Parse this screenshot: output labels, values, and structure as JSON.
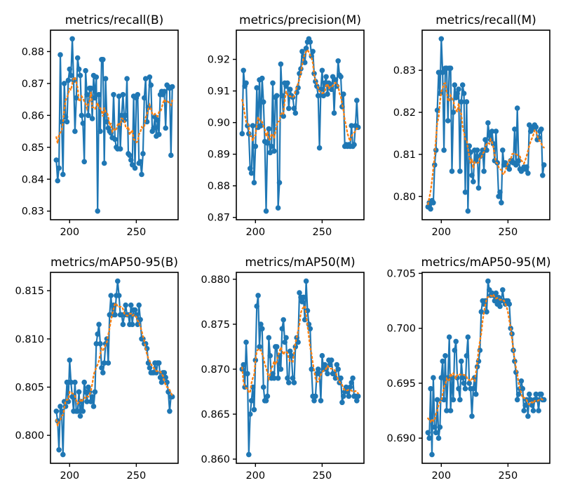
{
  "figure": {
    "background": "#ffffff",
    "line_color": "#1f77b4",
    "smooth_color": "#ff7f0e",
    "spine_color": "#000000",
    "smooth_window": 9,
    "smooth_legend_meaning": "smoothed trend (dotted)"
  },
  "chart_data": [
    {
      "type": "line",
      "title": "metrics/recall(B)",
      "xlabel": "",
      "ylabel": "",
      "grid": false,
      "legend": "none",
      "x_range": [
        190,
        277
      ],
      "xticks": [
        200,
        250
      ],
      "xtick_labels": [
        "200",
        "250"
      ],
      "yticks": [
        0.83,
        0.84,
        0.85,
        0.86,
        0.87,
        0.88
      ],
      "ytick_labels": [
        "0.83",
        "0.84",
        "0.85",
        "0.86",
        "0.87",
        "0.88"
      ],
      "series": [
        {
          "name": "results",
          "values": [
            0.846,
            0.8395,
            0.8435,
            0.879,
            0.858,
            0.8415,
            0.87,
            0.8595,
            0.858,
            0.871,
            0.8745,
            0.8725,
            0.884,
            0.871,
            0.855,
            0.8655,
            0.878,
            0.8745,
            0.8725,
            0.86,
            0.8575,
            0.8455,
            0.874,
            0.8665,
            0.86,
            0.8685,
            0.8685,
            0.859,
            0.8725,
            0.8655,
            0.872,
            0.83,
            0.8665,
            0.855,
            0.8775,
            0.8775,
            0.845,
            0.8715,
            0.858,
            0.856,
            0.855,
            0.8545,
            0.853,
            0.8665,
            0.8525,
            0.85,
            0.8495,
            0.866,
            0.8495,
            0.86,
            0.8665,
            0.8585,
            0.86,
            0.8715,
            0.848,
            0.8475,
            0.846,
            0.8445,
            0.866,
            0.8435,
            0.8655,
            0.8665,
            0.845,
            0.8455,
            0.8415,
            0.848,
            0.8655,
            0.8715,
            0.858,
            0.8625,
            0.872,
            0.8695,
            0.855,
            0.856,
            0.8595,
            0.8535,
            0.8585,
            0.854,
            0.8665,
            0.8675,
            0.8665,
            0.8675,
            0.856,
            0.8695,
            0.869,
            0.8685,
            0.8475,
            0.869
          ]
        },
        {
          "name": "smooth",
          "derived": "moving-average"
        }
      ]
    },
    {
      "type": "line",
      "title": "metrics/precision(M)",
      "xlabel": "",
      "ylabel": "",
      "grid": false,
      "legend": "none",
      "x_range": [
        190,
        277
      ],
      "xticks": [
        200,
        250
      ],
      "xtick_labels": [
        "200",
        "250"
      ],
      "yticks": [
        0.87,
        0.88,
        0.89,
        0.9,
        0.91,
        0.92
      ],
      "ytick_labels": [
        "0.87",
        "0.88",
        "0.89",
        "0.90",
        "0.91",
        "0.92"
      ],
      "series": [
        {
          "name": "results",
          "values": [
            0.8965,
            0.9165,
            0.9115,
            0.9125,
            0.899,
            0.8965,
            0.8855,
            0.884,
            0.899,
            0.881,
            0.8925,
            0.911,
            0.8985,
            0.9135,
            0.899,
            0.914,
            0.9065,
            0.894,
            0.872,
            0.8935,
            0.898,
            0.8905,
            0.8925,
            0.9125,
            0.891,
            0.908,
            0.9085,
            0.873,
            0.881,
            0.9185,
            0.9085,
            0.902,
            0.9125,
            0.9115,
            0.9125,
            0.9045,
            0.9105,
            0.9085,
            0.908,
            0.9045,
            0.903,
            0.9095,
            0.911,
            0.9155,
            0.917,
            0.9225,
            0.921,
            0.919,
            0.9235,
            0.9255,
            0.9265,
            0.9255,
            0.921,
            0.9225,
            0.9155,
            0.913,
            0.9115,
            0.9085,
            0.892,
            0.9105,
            0.9165,
            0.9085,
            0.9125,
            0.9145,
            0.909,
            0.9125,
            0.9115,
            0.9105,
            0.9145,
            0.903,
            0.9135,
            0.9115,
            0.9195,
            0.915,
            0.9145,
            0.905,
            0.909,
            0.8925,
            0.893,
            0.8925,
            0.893,
            0.8925,
            0.899,
            0.8925,
            0.893,
            0.899,
            0.907,
            0.8985
          ]
        },
        {
          "name": "smooth",
          "derived": "moving-average"
        }
      ]
    },
    {
      "type": "line",
      "title": "metrics/recall(M)",
      "xlabel": "",
      "ylabel": "",
      "grid": false,
      "legend": "none",
      "x_range": [
        190,
        277
      ],
      "xticks": [
        200,
        250
      ],
      "xtick_labels": [
        "200",
        "250"
      ],
      "yticks": [
        0.8,
        0.81,
        0.82,
        0.83
      ],
      "ytick_labels": [
        "0.80",
        "0.81",
        "0.82",
        "0.83"
      ],
      "series": [
        {
          "name": "results",
          "values": [
            0.7975,
            0.7985,
            0.797,
            0.799,
            0.7985,
            0.8075,
            0.811,
            0.8205,
            0.8295,
            0.8245,
            0.8375,
            0.8295,
            0.811,
            0.8305,
            0.8305,
            0.818,
            0.8305,
            0.8305,
            0.806,
            0.82,
            0.8265,
            0.8235,
            0.8245,
            0.8255,
            0.806,
            0.8225,
            0.8265,
            0.8245,
            0.801,
            0.8225,
            0.7965,
            0.812,
            0.8105,
            0.805,
            0.8035,
            0.811,
            0.8085,
            0.811,
            0.802,
            0.8095,
            0.81,
            0.811,
            0.806,
            0.8135,
            0.811,
            0.8175,
            0.8145,
            0.8135,
            0.8155,
            0.8125,
            0.8085,
            0.8155,
            0.808,
            0.8,
            0.801,
            0.7985,
            0.811,
            0.8075,
            0.808,
            0.8075,
            0.807,
            0.8065,
            0.8085,
            0.8085,
            0.808,
            0.816,
            0.8075,
            0.821,
            0.8085,
            0.8065,
            0.806,
            0.8065,
            0.807,
            0.8065,
            0.807,
            0.8055,
            0.817,
            0.8155,
            0.816,
            0.8165,
            0.817,
            0.8165,
            0.8135,
            0.814,
            0.8155,
            0.816,
            0.805,
            0.8075
          ]
        },
        {
          "name": "smooth",
          "derived": "moving-average"
        }
      ]
    },
    {
      "type": "line",
      "title": "metrics/mAP50-95(B)",
      "xlabel": "",
      "ylabel": "",
      "grid": false,
      "legend": "none",
      "x_range": [
        190,
        277
      ],
      "xticks": [
        200,
        250
      ],
      "xtick_labels": [
        "200",
        "250"
      ],
      "yticks": [
        0.8,
        0.805,
        0.81,
        0.815
      ],
      "ytick_labels": [
        "0.800",
        "0.805",
        "0.810",
        "0.815"
      ],
      "series": [
        {
          "name": "results",
          "values": [
            0.8025,
            0.8015,
            0.7985,
            0.803,
            0.8025,
            0.798,
            0.8035,
            0.803,
            0.8055,
            0.8035,
            0.8078,
            0.8055,
            0.804,
            0.8025,
            0.8055,
            0.8025,
            0.8025,
            0.8045,
            0.802,
            0.8035,
            0.8025,
            0.8055,
            0.8045,
            0.8035,
            0.805,
            0.8045,
            0.8035,
            0.804,
            0.803,
            0.8045,
            0.8095,
            0.8105,
            0.8115,
            0.8095,
            0.807,
            0.8065,
            0.8075,
            0.8095,
            0.81,
            0.8075,
            0.8125,
            0.8145,
            0.8125,
            0.8135,
            0.8125,
            0.8145,
            0.816,
            0.8145,
            0.8125,
            0.8125,
            0.8115,
            0.8125,
            0.8135,
            0.8125,
            0.8125,
            0.8115,
            0.8135,
            0.8115,
            0.813,
            0.813,
            0.8125,
            0.8115,
            0.8135,
            0.812,
            0.81,
            0.81,
            0.8095,
            0.8095,
            0.809,
            0.8075,
            0.807,
            0.8065,
            0.8065,
            0.8065,
            0.8075,
            0.8065,
            0.8075,
            0.8075,
            0.806,
            0.8055,
            0.8065,
            0.8065,
            0.806,
            0.8055,
            0.8045,
            0.8025,
            0.804,
            0.804
          ]
        },
        {
          "name": "smooth",
          "derived": "moving-average"
        }
      ]
    },
    {
      "type": "line",
      "title": "metrics/mAP50(M)",
      "xlabel": "",
      "ylabel": "",
      "grid": false,
      "legend": "none",
      "x_range": [
        190,
        277
      ],
      "xticks": [
        200,
        250
      ],
      "xtick_labels": [
        "200",
        "250"
      ],
      "yticks": [
        0.86,
        0.865,
        0.87,
        0.875,
        0.88
      ],
      "ytick_labels": [
        "0.860",
        "0.865",
        "0.870",
        "0.875",
        "0.880"
      ],
      "series": [
        {
          "name": "results",
          "values": [
            0.87,
            0.8705,
            0.868,
            0.873,
            0.8695,
            0.8605,
            0.865,
            0.8665,
            0.868,
            0.8655,
            0.871,
            0.877,
            0.8782,
            0.8725,
            0.875,
            0.8745,
            0.868,
            0.8665,
            0.8665,
            0.867,
            0.8735,
            0.8715,
            0.869,
            0.8695,
            0.869,
            0.8725,
            0.8725,
            0.869,
            0.8715,
            0.87,
            0.8745,
            0.8755,
            0.873,
            0.8735,
            0.869,
            0.8685,
            0.872,
            0.8715,
            0.869,
            0.8685,
            0.8725,
            0.8735,
            0.873,
            0.8785,
            0.878,
            0.8775,
            0.878,
            0.8755,
            0.8798,
            0.8765,
            0.875,
            0.8745,
            0.87,
            0.867,
            0.8665,
            0.867,
            0.8695,
            0.87,
            0.8695,
            0.8665,
            0.8715,
            0.87,
            0.8705,
            0.87,
            0.8695,
            0.871,
            0.8705,
            0.871,
            0.8695,
            0.8695,
            0.869,
            0.8705,
            0.87,
            0.8685,
            0.869,
            0.8663,
            0.867,
            0.8675,
            0.868,
            0.8675,
            0.867,
            0.868,
            0.8685,
            0.869,
            0.867,
            0.867,
            0.8665,
            0.867
          ]
        },
        {
          "name": "smooth",
          "derived": "moving-average"
        }
      ]
    },
    {
      "type": "line",
      "title": "metrics/mAP50-95(M)",
      "xlabel": "",
      "ylabel": "",
      "grid": false,
      "legend": "none",
      "x_range": [
        190,
        277
      ],
      "xticks": [
        200,
        250
      ],
      "xtick_labels": [
        "200",
        "250"
      ],
      "yticks": [
        0.69,
        0.695,
        0.7,
        0.705
      ],
      "ytick_labels": [
        "0.690",
        "0.695",
        "0.700",
        "0.705"
      ],
      "series": [
        {
          "name": "results",
          "values": [
            0.6905,
            0.69,
            0.6945,
            0.6885,
            0.6955,
            0.691,
            0.6905,
            0.6935,
            0.69,
            0.691,
            0.6955,
            0.697,
            0.6935,
            0.6975,
            0.6925,
            0.6955,
            0.6992,
            0.6925,
            0.6955,
            0.6935,
            0.698,
            0.6988,
            0.6955,
            0.6945,
            0.6935,
            0.697,
            0.6955,
            0.695,
            0.6945,
            0.6975,
            0.6992,
            0.695,
            0.6945,
            0.692,
            0.6945,
            0.6955,
            0.694,
            0.6965,
            0.697,
            0.698,
            0.7015,
            0.7025,
            0.7022,
            0.7025,
            0.7015,
            0.7043,
            0.7035,
            0.703,
            0.7032,
            0.703,
            0.7025,
            0.7032,
            0.7022,
            0.7028,
            0.702,
            0.7025,
            0.7035,
            0.7025,
            0.7022,
            0.7025,
            0.7025,
            0.7022,
            0.7,
            0.6995,
            0.698,
            0.697,
            0.696,
            0.6935,
            0.694,
            0.6945,
            0.6952,
            0.6945,
            0.6925,
            0.693,
            0.6935,
            0.692,
            0.694,
            0.6935,
            0.693,
            0.6925,
            0.6935,
            0.694,
            0.6935,
            0.6925,
            0.694,
            0.694,
            0.6935,
            0.6935
          ]
        },
        {
          "name": "smooth",
          "derived": "moving-average"
        }
      ]
    }
  ]
}
